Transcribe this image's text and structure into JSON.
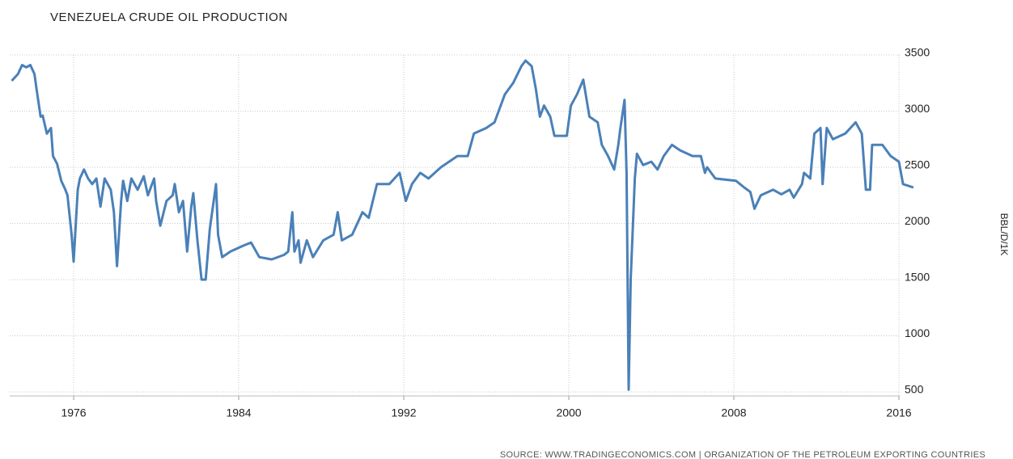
{
  "chart_data": {
    "type": "line",
    "title": "VENEZUELA CRUDE OIL PRODUCTION",
    "y_label": "BBL/D/1K",
    "source": "SOURCE: WWW.TRADINGECONOMICS.COM | ORGANIZATION OF THE PETROLEUM EXPORTING COUNTRIES",
    "xlim": [
      1972.9,
      2016.8
    ],
    "xticks": [
      1976,
      1984,
      1992,
      2000,
      2008,
      2016
    ],
    "ylim": [
      500,
      3500
    ],
    "yticks": [
      500,
      1000,
      1500,
      2000,
      2500,
      3000,
      3500
    ],
    "grid": true,
    "series": [
      {
        "color": "#4a80b8",
        "x": [
          1973.0,
          1973.3,
          1973.5,
          1973.7,
          1973.9,
          1974.1,
          1974.2,
          1974.4,
          1974.5,
          1974.7,
          1974.9,
          1975.0,
          1975.2,
          1975.4,
          1975.6,
          1975.7,
          1975.9,
          1976.0,
          1976.2,
          1976.3,
          1976.5,
          1976.7,
          1976.9,
          1977.1,
          1977.3,
          1977.5,
          1977.8,
          1977.95,
          1978.1,
          1978.3,
          1978.4,
          1978.6,
          1978.8,
          1979.1,
          1979.4,
          1979.6,
          1979.9,
          1980.0,
          1980.2,
          1980.5,
          1980.8,
          1980.9,
          1981.1,
          1981.3,
          1981.5,
          1981.7,
          1981.8,
          1982.0,
          1982.2,
          1982.4,
          1982.6,
          1982.9,
          1983.0,
          1983.2,
          1983.6,
          1984.2,
          1984.6,
          1985.0,
          1985.6,
          1986.2,
          1986.4,
          1986.6,
          1986.7,
          1986.9,
          1987.0,
          1987.3,
          1987.6,
          1988.1,
          1988.6,
          1988.8,
          1989.0,
          1989.5,
          1990.0,
          1990.3,
          1990.7,
          1991.3,
          1991.8,
          1992.1,
          1992.4,
          1992.8,
          1993.2,
          1993.8,
          1994.6,
          1995.1,
          1995.4,
          1996.0,
          1996.4,
          1996.6,
          1996.9,
          1997.3,
          1997.7,
          1997.9,
          1998.2,
          1998.4,
          1998.6,
          1998.8,
          1999.1,
          1999.3,
          1999.9,
          2000.1,
          2000.4,
          2000.7,
          2001.0,
          2001.4,
          2001.6,
          2001.9,
          2002.2,
          2002.4,
          2002.5,
          2002.7,
          2002.8,
          2002.9,
          2003.0,
          2003.2,
          2003.3,
          2003.6,
          2004.0,
          2004.3,
          2004.6,
          2005.0,
          2005.4,
          2006.0,
          2006.4,
          2006.6,
          2006.7,
          2007.1,
          2008.1,
          2008.5,
          2008.8,
          2009.0,
          2009.3,
          2009.9,
          2010.3,
          2010.7,
          2010.9,
          2011.3,
          2011.4,
          2011.7,
          2011.9,
          2012.2,
          2012.3,
          2012.5,
          2012.8,
          2013.4,
          2013.9,
          2014.2,
          2014.4,
          2014.6,
          2014.7,
          2015.2,
          2015.6,
          2016.0,
          2016.2,
          2016.7
        ],
        "values": [
          3270,
          3330,
          3410,
          3390,
          3410,
          3330,
          3200,
          2950,
          2960,
          2800,
          2850,
          2600,
          2530,
          2380,
          2300,
          2250,
          1900,
          1660,
          2300,
          2400,
          2480,
          2400,
          2350,
          2400,
          2150,
          2400,
          2300,
          2100,
          1620,
          2200,
          2380,
          2200,
          2400,
          2300,
          2420,
          2250,
          2400,
          2200,
          1980,
          2200,
          2250,
          2350,
          2100,
          2200,
          1750,
          2150,
          2270,
          1850,
          1500,
          1500,
          1950,
          2350,
          1900,
          1700,
          1750,
          1800,
          1830,
          1700,
          1680,
          1720,
          1750,
          2100,
          1750,
          1850,
          1650,
          1850,
          1700,
          1850,
          1900,
          2100,
          1850,
          1900,
          2100,
          2050,
          2350,
          2350,
          2450,
          2200,
          2350,
          2450,
          2400,
          2500,
          2600,
          2600,
          2800,
          2850,
          2900,
          3000,
          3150,
          3250,
          3400,
          3450,
          3400,
          3200,
          2950,
          3050,
          2950,
          2780,
          2780,
          3050,
          3150,
          3280,
          2950,
          2900,
          2700,
          2600,
          2480,
          2700,
          2850,
          3100,
          2450,
          520,
          1500,
          2400,
          2620,
          2520,
          2550,
          2480,
          2600,
          2700,
          2650,
          2600,
          2600,
          2450,
          2500,
          2400,
          2380,
          2320,
          2280,
          2130,
          2250,
          2300,
          2260,
          2300,
          2230,
          2350,
          2450,
          2400,
          2800,
          2850,
          2350,
          2850,
          2750,
          2800,
          2900,
          2800,
          2300,
          2300,
          2700,
          2700,
          2600,
          2550,
          2350,
          2320
        ]
      }
    ]
  }
}
